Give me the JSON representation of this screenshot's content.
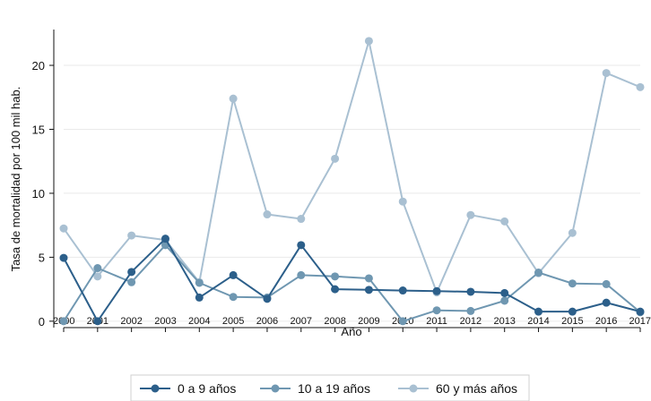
{
  "chart_data": {
    "type": "line",
    "xlabel": "Año",
    "ylabel": "Tasa de mortalidad por 100 mil hab.",
    "x": [
      2000,
      2001,
      2002,
      2003,
      2004,
      2005,
      2006,
      2007,
      2008,
      2009,
      2010,
      2011,
      2012,
      2013,
      2014,
      2015,
      2016,
      2017
    ],
    "x_tick_labels": [
      "2000",
      "2001",
      "2002",
      "2003",
      "2004",
      "2005",
      "2006",
      "2007",
      "2008",
      "2009",
      "2010",
      "2011",
      "2012",
      "2013",
      "2014",
      "2015",
      "2016",
      "2017"
    ],
    "y_ticks": [
      0,
      5,
      10,
      15,
      20
    ],
    "y_tick_labels": [
      "0",
      "5",
      "10",
      "15",
      "20"
    ],
    "xlim": [
      2000,
      2017
    ],
    "ylim": [
      -0.5,
      22.8
    ],
    "grid": "horizontal",
    "legend_position": "bottom",
    "series": [
      {
        "name": "0 a 9 años",
        "color": "#2c5f8a",
        "values": [
          4.95,
          0.0,
          3.85,
          6.45,
          1.85,
          3.6,
          1.75,
          5.95,
          2.5,
          2.45,
          2.4,
          2.35,
          2.3,
          2.2,
          0.75,
          0.75,
          1.45,
          0.75
        ]
      },
      {
        "name": "10 a 19 años",
        "color": "#6f97b1",
        "values": [
          0.0,
          4.15,
          3.05,
          5.95,
          3.0,
          1.9,
          1.85,
          3.6,
          3.5,
          3.35,
          0.0,
          0.85,
          0.8,
          1.6,
          3.8,
          2.95,
          2.9,
          0.7
        ]
      },
      {
        "name": "60 y más años",
        "color": "#a9c0d2",
        "values": [
          7.25,
          3.5,
          6.7,
          6.35,
          3.05,
          17.4,
          8.35,
          8.0,
          12.7,
          21.9,
          9.35,
          2.25,
          8.3,
          7.8,
          3.75,
          6.9,
          19.4,
          18.3
        ]
      }
    ]
  }
}
